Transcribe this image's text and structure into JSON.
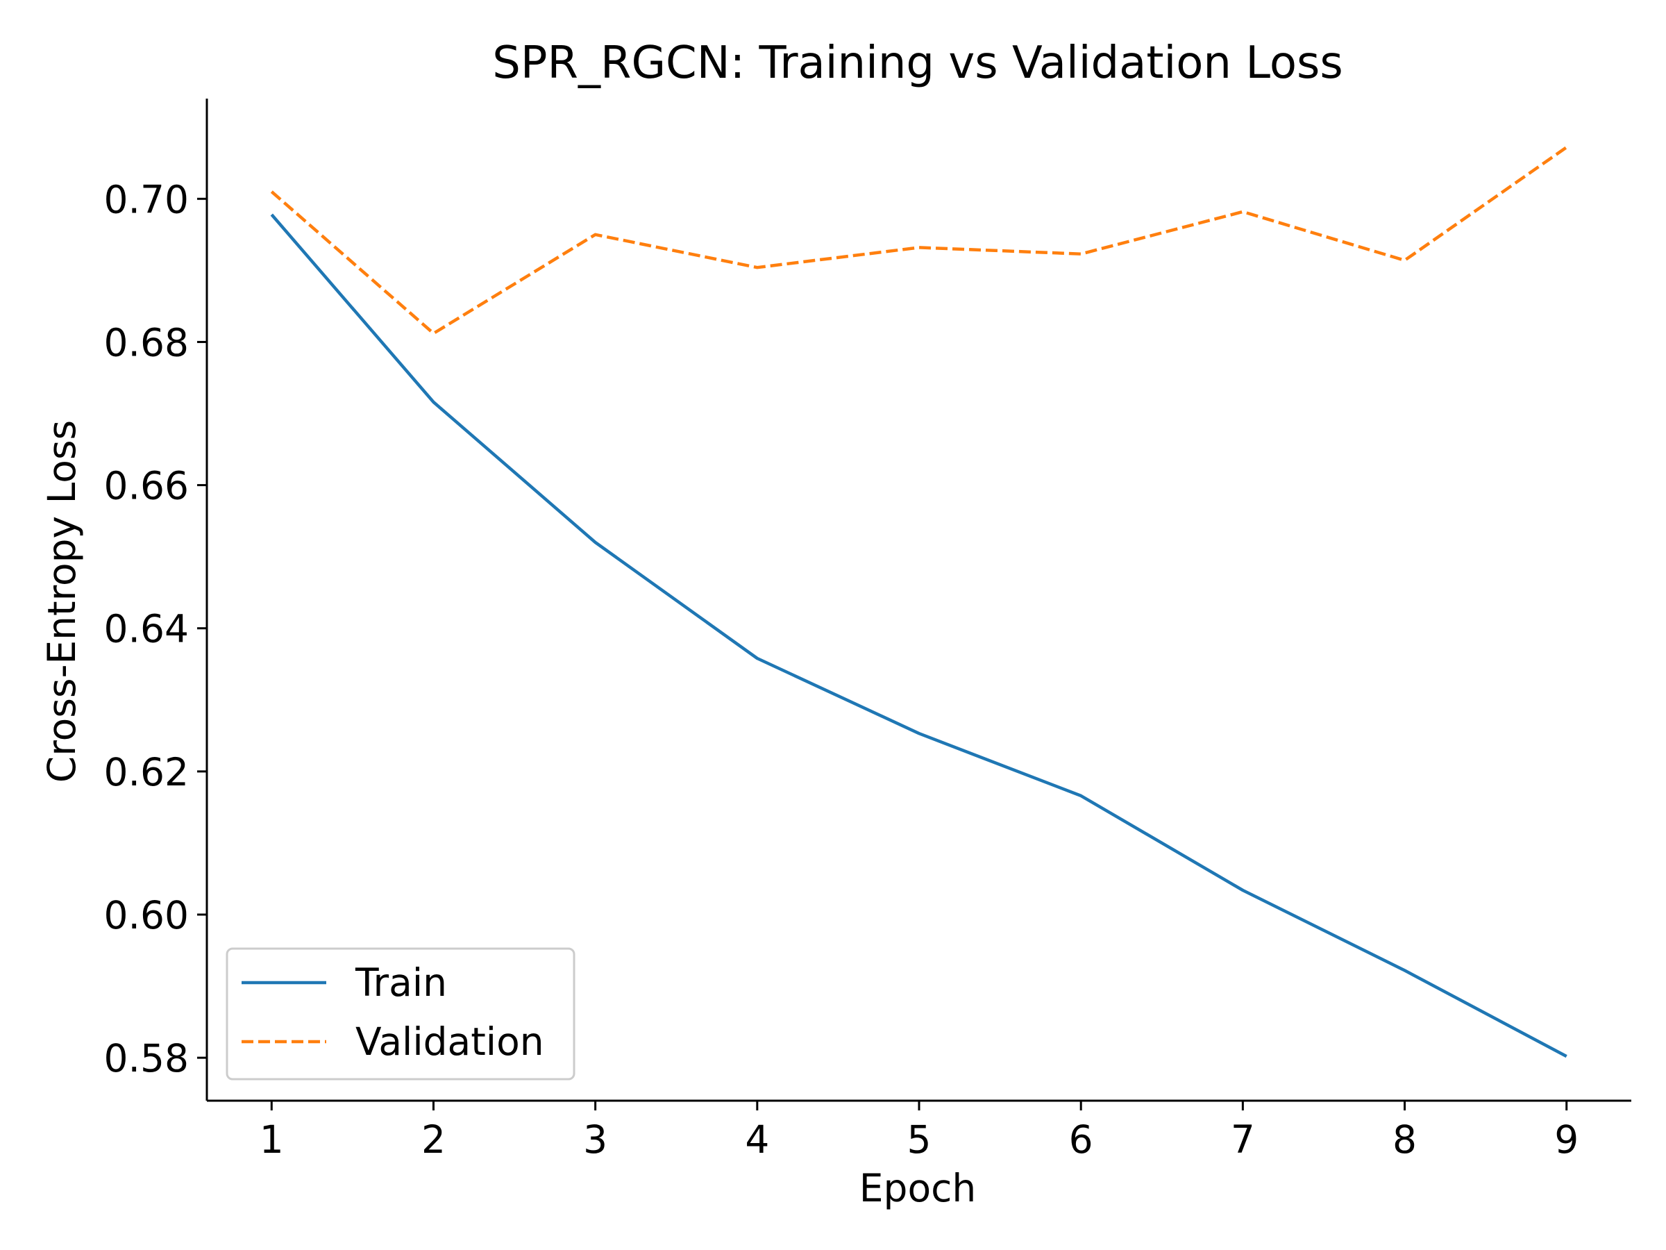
{
  "chart_data": {
    "type": "line",
    "title": "SPR_RGCN: Training vs Validation Loss",
    "xlabel": "Epoch",
    "ylabel": "Cross-Entropy Loss",
    "x": [
      1,
      2,
      3,
      4,
      5,
      6,
      7,
      8,
      9
    ],
    "xlim": [
      0.6,
      9.4
    ],
    "ylim": [
      0.574,
      0.714
    ],
    "x_ticks": [
      "1",
      "2",
      "3",
      "4",
      "5",
      "6",
      "7",
      "8",
      "9"
    ],
    "y_ticks": [
      "0.58",
      "0.60",
      "0.62",
      "0.64",
      "0.66",
      "0.68",
      "0.70"
    ],
    "y_tick_values": [
      0.58,
      0.6,
      0.62,
      0.64,
      0.66,
      0.68,
      0.7
    ],
    "grid": false,
    "legend_position": "lower-left",
    "series": [
      {
        "name": "Train",
        "style": "solid",
        "color": "#1f77b4",
        "values": [
          0.6978,
          0.6716,
          0.652,
          0.6358,
          0.6253,
          0.6166,
          0.6034,
          0.5922,
          0.5802
        ]
      },
      {
        "name": "Validation",
        "style": "dashed",
        "color": "#ff7f0e",
        "values": [
          0.701,
          0.6812,
          0.695,
          0.6904,
          0.6932,
          0.6923,
          0.6982,
          0.6914,
          0.7072
        ]
      }
    ]
  }
}
